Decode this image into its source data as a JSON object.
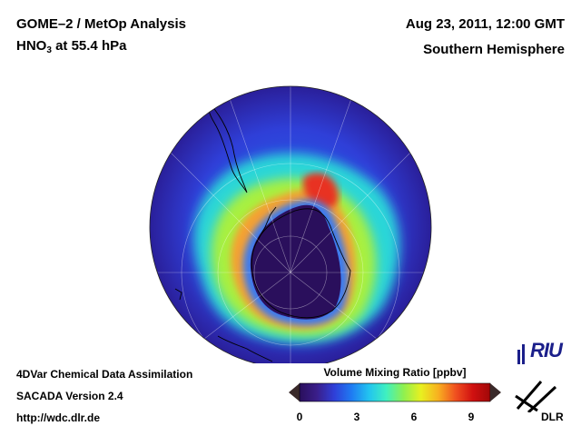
{
  "header": {
    "title": "GOME–2 / MetOp Analysis",
    "species_prefix": "HNO",
    "species_subscript": "3",
    "species_suffix": " at 55.4 hPa",
    "datetime": "Aug 23, 2011, 12:00 GMT",
    "region": "Southern Hemisphere"
  },
  "footer": {
    "line1": "4DVar Chemical Data Assimilation",
    "line2": "SACADA Version 2.4",
    "line3": "http://wdc.dlr.de"
  },
  "colorbar": {
    "title": "Volume Mixing Ratio [ppbv]",
    "min": 0,
    "max": 10,
    "ticks": [
      "0",
      "3",
      "6",
      "9"
    ],
    "colors": [
      "#2a0f5c",
      "#3a1e8a",
      "#2f3fd8",
      "#1f7bf2",
      "#22c4f0",
      "#3ff0c0",
      "#8ff050",
      "#e8f020",
      "#f8b020",
      "#f05020",
      "#d01010",
      "#a00808"
    ],
    "arrow_color": "#3a2a2a"
  },
  "logos": {
    "riu": "RIU",
    "dlr": "DLR"
  },
  "map_data": {
    "projection": "orthographic south-polar stereographic view",
    "field": "HNO3 volume mixing ratio",
    "units": "ppbv",
    "features": [
      "Antarctica coastline",
      "South America tip",
      "Africa tip",
      "Australia edge",
      "latitude circles",
      "longitude meridians"
    ],
    "polar_vortex_core_value": 0.5,
    "collar_max_value": 9.5,
    "background_value": 2.5
  }
}
